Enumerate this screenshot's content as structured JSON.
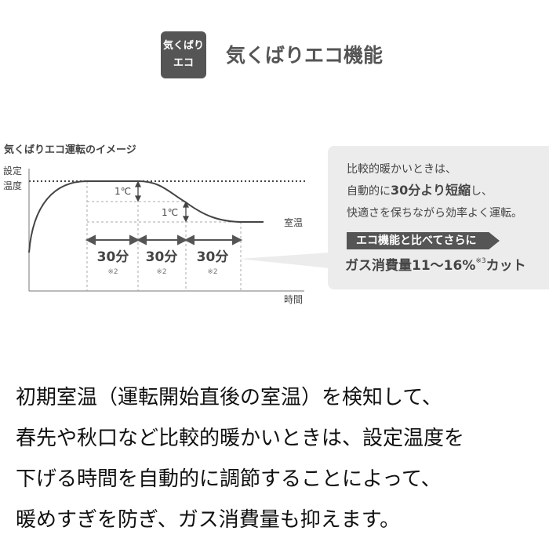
{
  "header": {
    "badge_line1": "気くばり",
    "badge_line2": "エコ",
    "title": "気くばりエコ機能"
  },
  "diagram": {
    "title": "気くばりエコ運転のイメージ",
    "y_label_1": "設定",
    "y_label_2": "温度",
    "x_label": "時間",
    "room_temp_label": "室温",
    "step_labels": [
      "1℃",
      "1℃"
    ],
    "intervals": [
      {
        "label": "30分",
        "note": "※2"
      },
      {
        "label": "30分",
        "note": "※2"
      },
      {
        "label": "30分",
        "note": "※2"
      }
    ]
  },
  "callout": {
    "line1": "比較的暖かいときは、",
    "line2_a": "自動的に",
    "line2_b": "30分より短縮",
    "line2_c": "し、",
    "line3": "快適さを保ちながら効率よく運転。",
    "tag": "エコ機能と比べてさらに",
    "cut_a": "ガス消費量11〜16%",
    "cut_note": "※3",
    "cut_b": "カット"
  },
  "description": [
    "初期室温（運転開始直後の室温）を検知して、",
    "春先や秋口など比較的暖かいときは、設定温度を",
    "下げる時間を自動的に調節することによって、",
    "暖めすぎを防ぎ、ガス消費量も抑えます。"
  ]
}
